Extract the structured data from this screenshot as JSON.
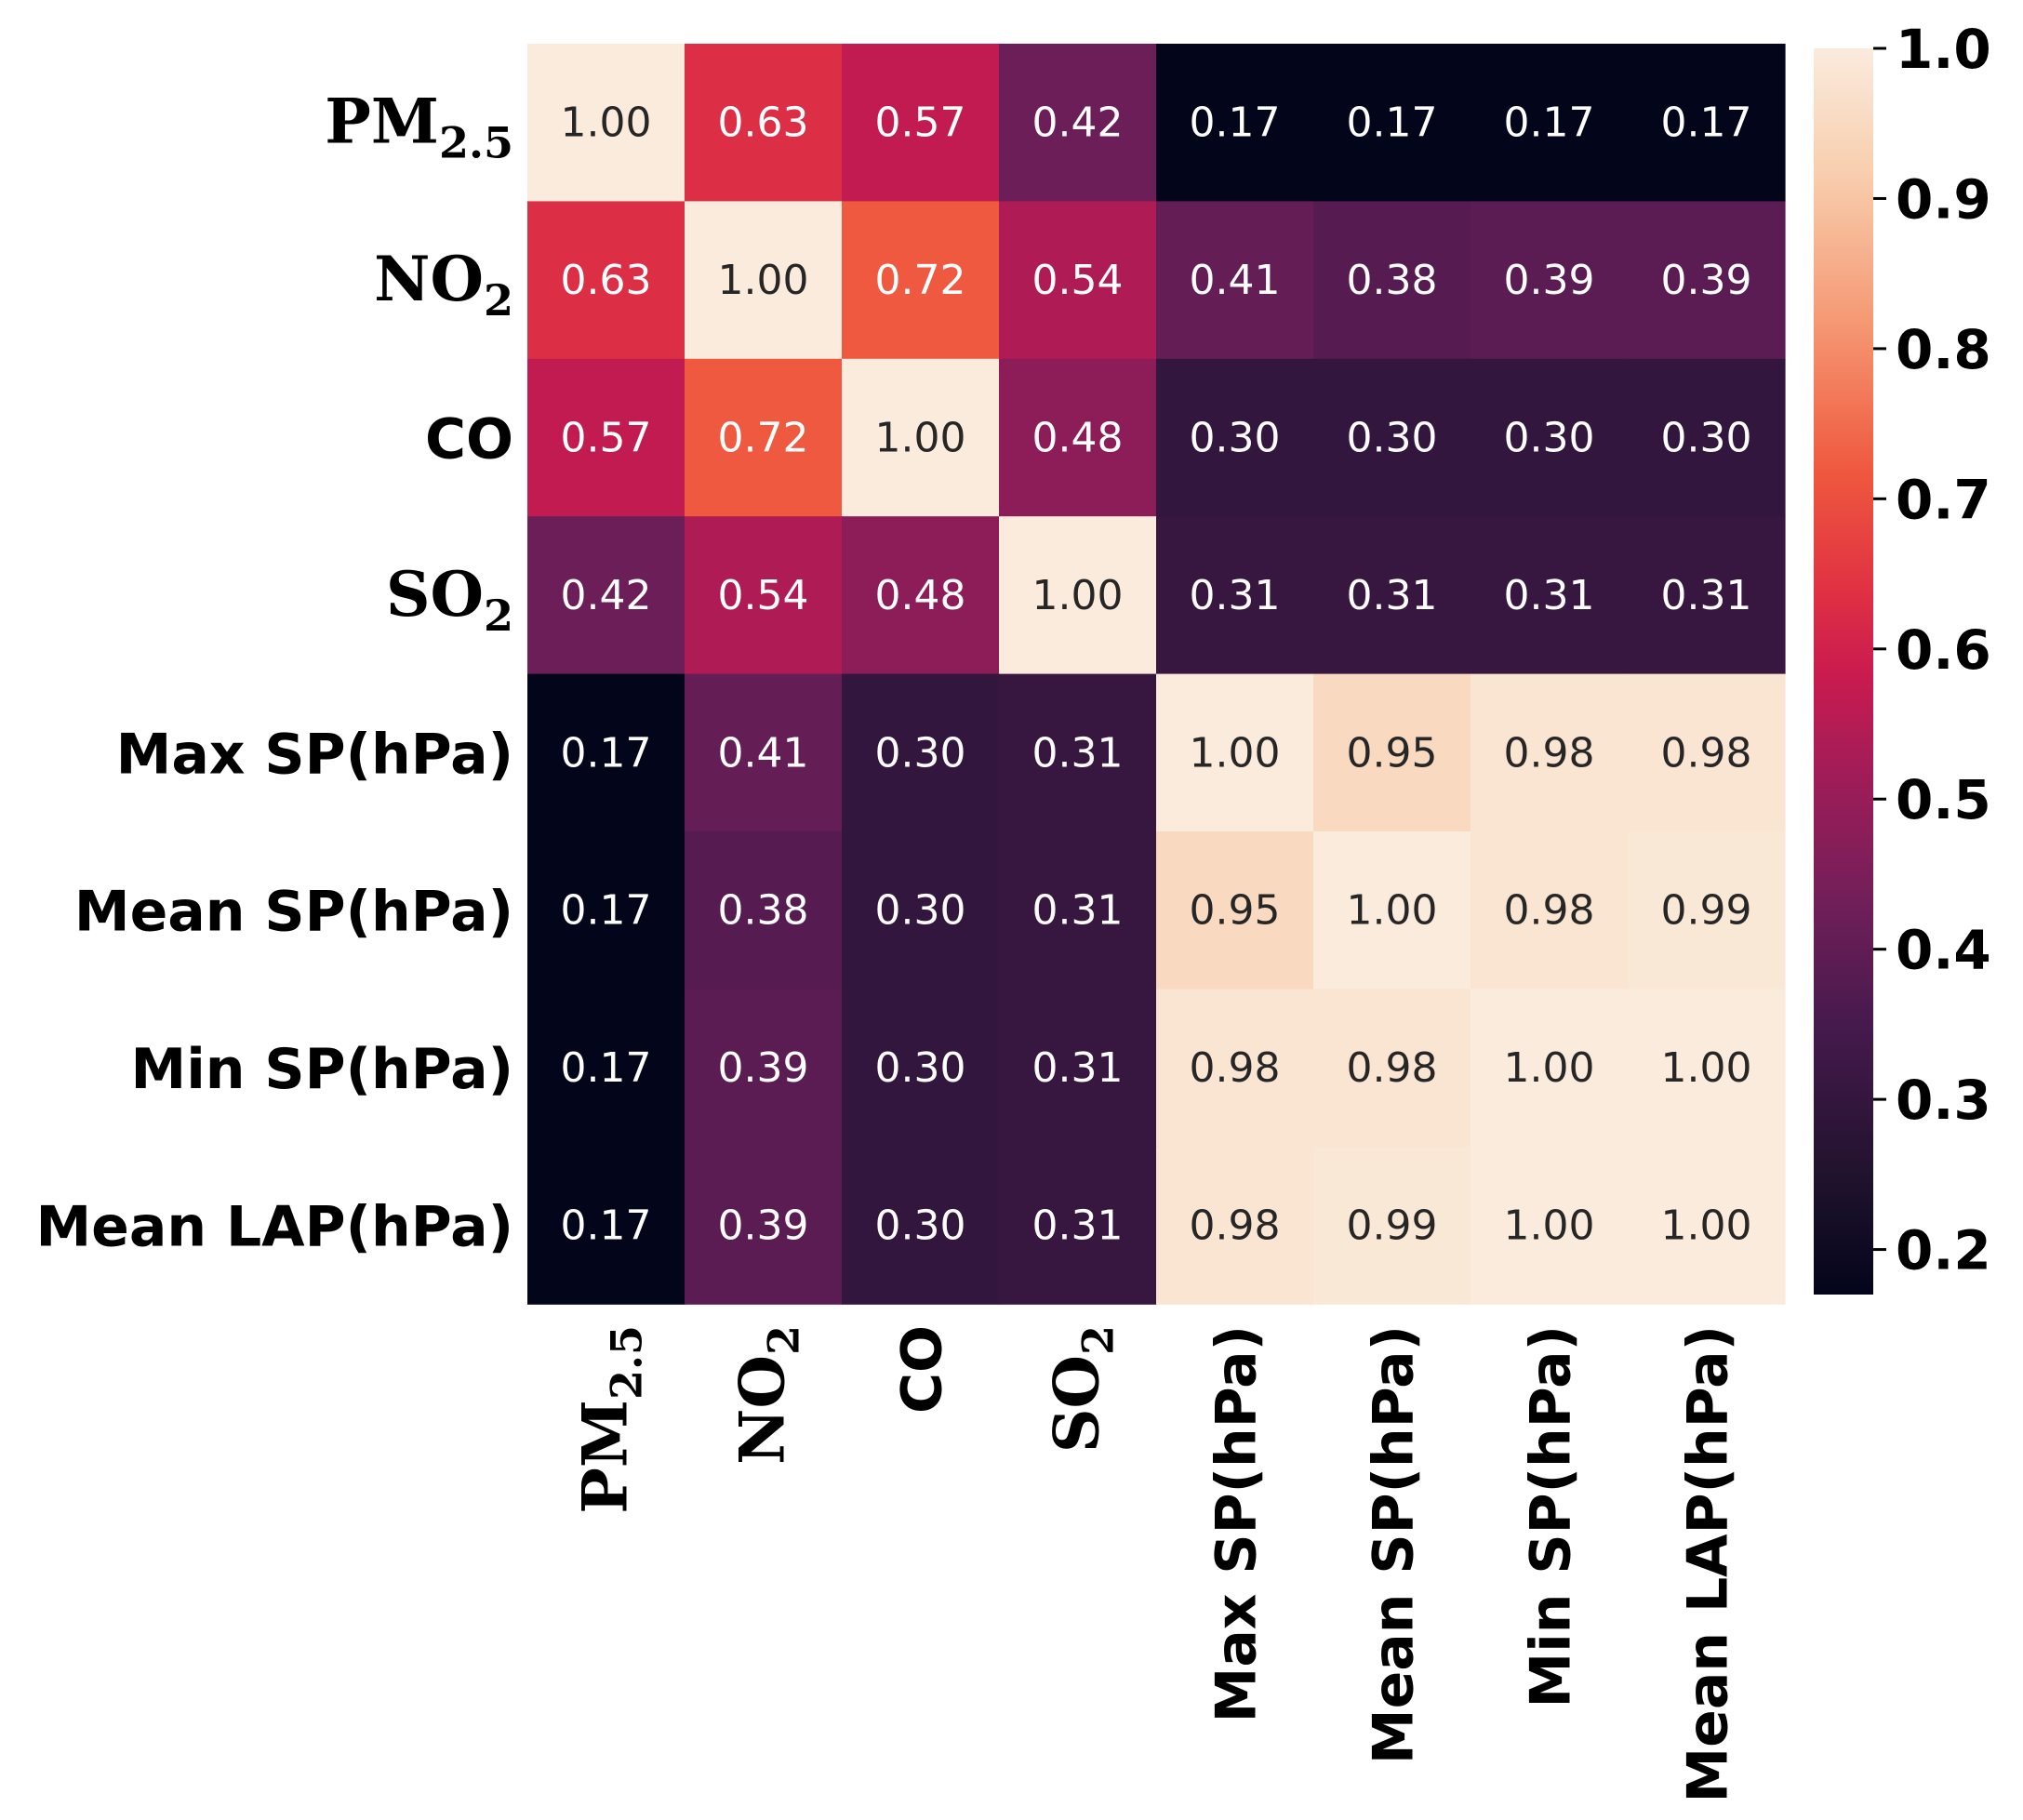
{
  "chart_data": {
    "type": "heatmap",
    "title": "",
    "labels": [
      {
        "main": "PM",
        "sub": "2.5",
        "chem": true
      },
      {
        "main": "NO",
        "sub": "2",
        "chem": true
      },
      {
        "main": "CO",
        "sub": "",
        "chem": false
      },
      {
        "main": "SO",
        "sub": "2",
        "chem": true
      },
      {
        "main": "Max SP(hPa)",
        "sub": "",
        "chem": false
      },
      {
        "main": "Mean SP(hPa)",
        "sub": "",
        "chem": false
      },
      {
        "main": "Min SP(hPa)",
        "sub": "",
        "chem": false
      },
      {
        "main": "Mean LAP(hPa)",
        "sub": "",
        "chem": false
      }
    ],
    "values": [
      [
        1.0,
        0.63,
        0.57,
        0.42,
        0.17,
        0.17,
        0.17,
        0.17
      ],
      [
        0.63,
        1.0,
        0.72,
        0.54,
        0.41,
        0.38,
        0.39,
        0.39
      ],
      [
        0.57,
        0.72,
        1.0,
        0.48,
        0.3,
        0.3,
        0.3,
        0.3
      ],
      [
        0.42,
        0.54,
        0.48,
        1.0,
        0.31,
        0.31,
        0.31,
        0.31
      ],
      [
        0.17,
        0.41,
        0.3,
        0.31,
        1.0,
        0.95,
        0.98,
        0.98
      ],
      [
        0.17,
        0.38,
        0.3,
        0.31,
        0.95,
        1.0,
        0.98,
        0.99
      ],
      [
        0.17,
        0.39,
        0.3,
        0.31,
        0.98,
        0.98,
        1.0,
        1.0
      ],
      [
        0.17,
        0.39,
        0.3,
        0.31,
        0.98,
        0.99,
        1.0,
        1.0
      ]
    ],
    "colorbar": {
      "min": 0.17,
      "max": 1.0,
      "ticks": [
        0.2,
        0.3,
        0.4,
        0.5,
        0.6,
        0.7,
        0.8,
        0.9,
        1.0
      ],
      "tick_labels": [
        "0.2",
        "0.3",
        "0.4",
        "0.5",
        "0.6",
        "0.7",
        "0.8",
        "0.9",
        "1.0"
      ],
      "colormap": "rocket"
    }
  }
}
